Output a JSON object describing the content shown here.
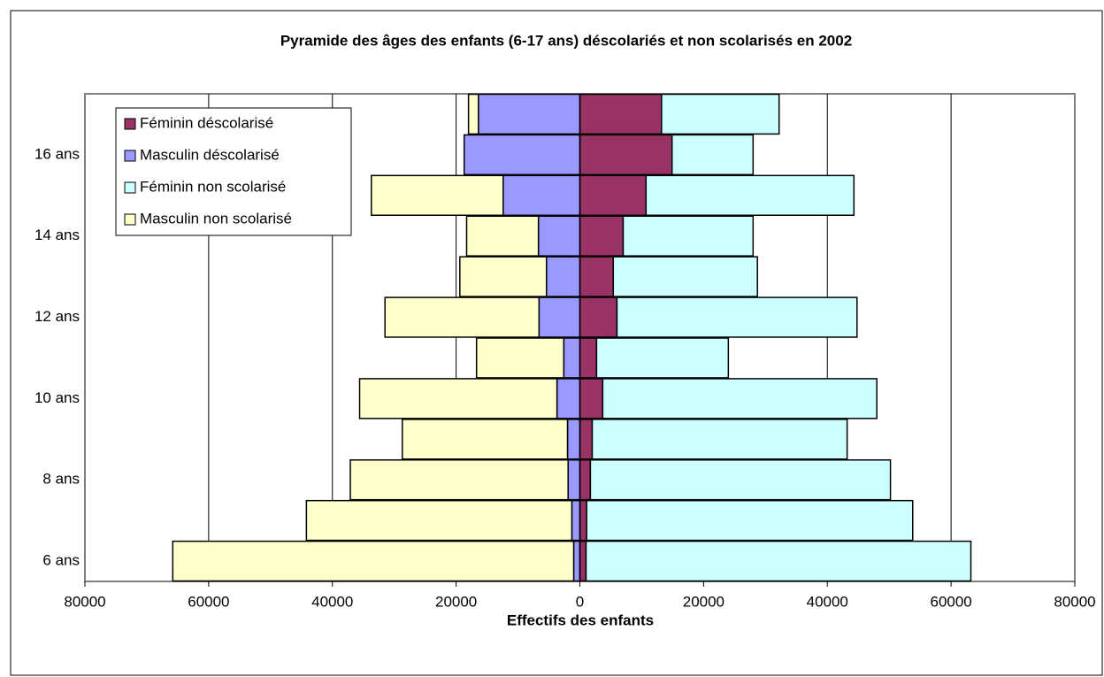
{
  "chart_data": {
    "type": "bar",
    "orientation": "horizontal",
    "stacked": true,
    "title": "Pyramide des âges des enfants (6-17 ans) déscolariés et non scolarisés en 2002",
    "x_label": "Effectifs des enfants",
    "categories": [
      "6 ans",
      null,
      "8 ans",
      null,
      "10 ans",
      null,
      "12 ans",
      null,
      "14 ans",
      null,
      "16 ans",
      null
    ],
    "series": [
      {
        "name": "Féminin déscolarisé",
        "color": "#993366",
        "values": [
          1000,
          1100,
          1700,
          2000,
          3700,
          2700,
          6000,
          5400,
          7000,
          10700,
          14900,
          13200
        ]
      },
      {
        "name": "Masculin déscolarisé",
        "color": "#9999ff",
        "values": [
          -1000,
          -1300,
          -1900,
          -2000,
          -3700,
          -2600,
          -6600,
          -5400,
          -6700,
          -12400,
          -18700,
          -16400
        ]
      },
      {
        "name": "Féminin non scolarisé",
        "color": "#ccffff",
        "values": [
          62200,
          52700,
          48500,
          41200,
          44300,
          21300,
          38800,
          23300,
          21000,
          33600,
          13100,
          19000
        ]
      },
      {
        "name": "Masculin non scolarisé",
        "color": "#ffffcc",
        "values": [
          -64800,
          -42900,
          -35200,
          -26700,
          -31900,
          -14100,
          -24900,
          -14000,
          -11600,
          -21300,
          0,
          -1600
        ]
      }
    ],
    "xlim": [
      -80000,
      80000
    ],
    "xticks": [
      {
        "value": -80000,
        "label": "80000"
      },
      {
        "value": -60000,
        "label": "60000"
      },
      {
        "value": -40000,
        "label": "40000"
      },
      {
        "value": -20000,
        "label": "20000"
      },
      0,
      20000,
      40000,
      60000,
      80000
    ],
    "grid": true,
    "legend": "upper left"
  }
}
